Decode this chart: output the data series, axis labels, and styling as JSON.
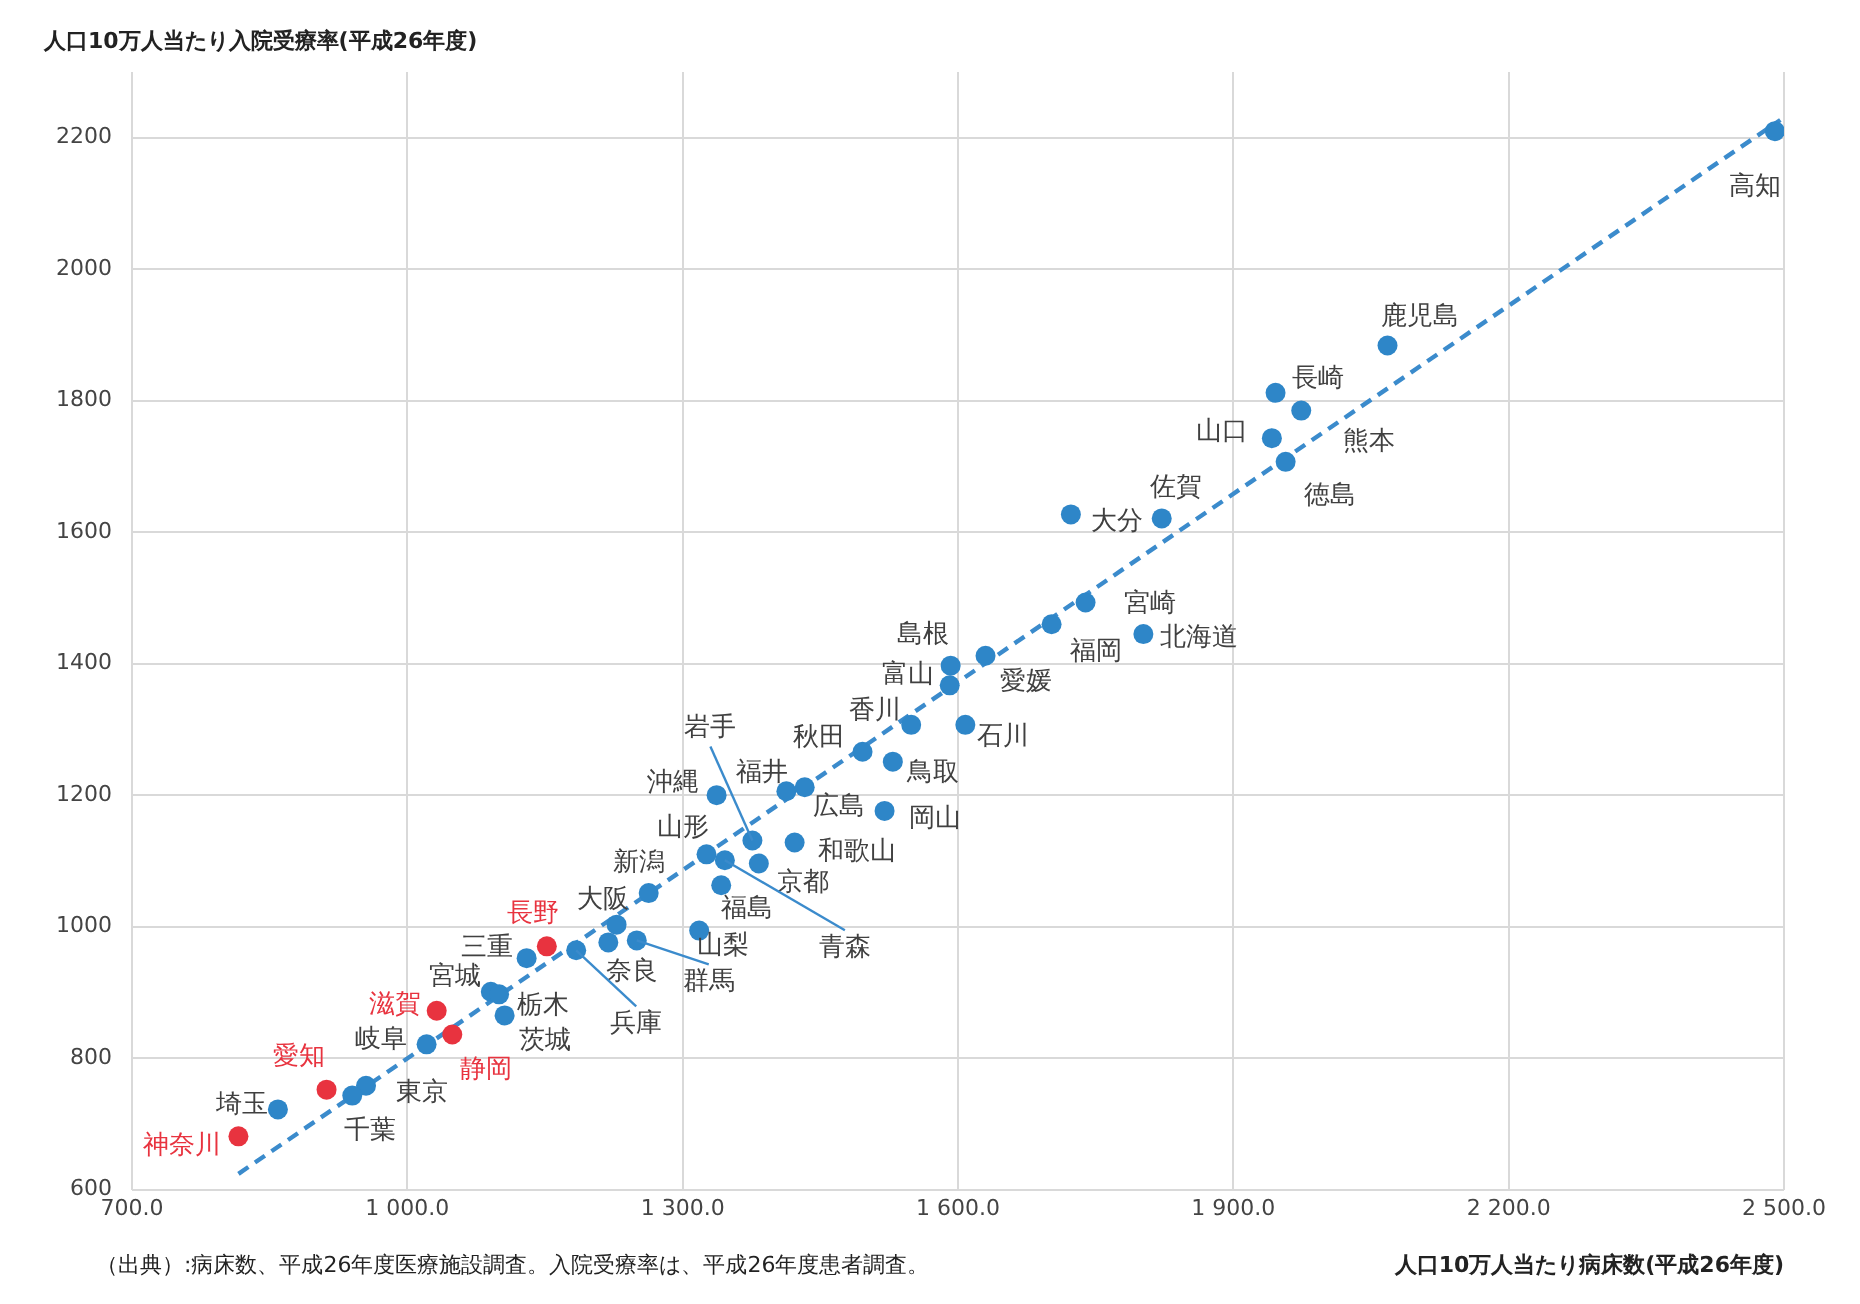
{
  "chart_data": {
    "type": "scatter",
    "xlabel": "人口10万人当たり病床数(平成26年度)",
    "ylabel": "人口10万人当たり入院受療率(平成26年度)",
    "xlim": [
      700,
      2500
    ],
    "ylim": [
      600,
      2300
    ],
    "xticks": [
      {
        "value": 700,
        "label": "700.0"
      },
      {
        "value": 1000,
        "label": "1 000.0"
      },
      {
        "value": 1300,
        "label": "1 300.0"
      },
      {
        "value": 1600,
        "label": "1 600.0"
      },
      {
        "value": 1900,
        "label": "1 900.0"
      },
      {
        "value": 2200,
        "label": "2 200.0"
      },
      {
        "value": 2500,
        "label": "2 500.0"
      }
    ],
    "yticks": [
      600,
      800,
      1000,
      1200,
      1400,
      1600,
      1800,
      2000,
      2200
    ],
    "grid": true,
    "legend": false,
    "marker": "circle",
    "series": [
      {
        "type": "scatter",
        "color": "#2e86c8",
        "x": [
          2490,
          2068,
          1946,
          1974,
          1942,
          1957,
          1822,
          1723,
          1739,
          1702,
          1802,
          1592,
          1630,
          1591,
          1549,
          1608,
          1496,
          1529,
          1376,
          1337,
          1413,
          1433,
          1520,
          1326,
          1422,
          1263,
          1383,
          1342,
          1346,
          1228,
          1318,
          1152,
          1130,
          1219,
          1250,
          1184,
          1091,
          1100,
          1032,
          1106,
          1049,
          1021,
          955,
          912,
          940,
          859,
          816
        ],
        "values": [
          2210,
          1884,
          1812,
          1785,
          1743,
          1707,
          1621,
          1627,
          1493,
          1460,
          1445,
          1397,
          1412,
          1367,
          1307,
          1307,
          1266,
          1251,
          1131,
          1200,
          1206,
          1212,
          1176,
          1110,
          1128,
          1051,
          1096,
          1063,
          1101,
          1003,
          994,
          970,
          952,
          976,
          979,
          964,
          901,
          897,
          872,
          865,
          836,
          821,
          758,
          752,
          743,
          722,
          681
        ],
        "colors": [
          "#2e86c8",
          "#2e86c8",
          "#2e86c8",
          "#2e86c8",
          "#2e86c8",
          "#2e86c8",
          "#2e86c8",
          "#2e86c8",
          "#2e86c8",
          "#2e86c8",
          "#2e86c8",
          "#2e86c8",
          "#2e86c8",
          "#2e86c8",
          "#2e86c8",
          "#2e86c8",
          "#2e86c8",
          "#2e86c8",
          "#2e86c8",
          "#2e86c8",
          "#2e86c8",
          "#2e86c8",
          "#2e86c8",
          "#2e86c8",
          "#2e86c8",
          "#2e86c8",
          "#2e86c8",
          "#2e86c8",
          "#2e86c8",
          "#2e86c8",
          "#2e86c8",
          "#e8333f",
          "#2e86c8",
          "#2e86c8",
          "#2e86c8",
          "#2e86c8",
          "#2e86c8",
          "#2e86c8",
          "#e8333f",
          "#2e86c8",
          "#e8333f",
          "#2e86c8",
          "#2e86c8",
          "#e8333f",
          "#2e86c8",
          "#2e86c8",
          "#e8333f"
        ]
      },
      {
        "type": "line",
        "color": "#3b8bcc",
        "line_style": "dashed",
        "marker": "none",
        "x": [
          816,
          2496
        ],
        "values": [
          624,
          2227
        ]
      }
    ],
    "annotations": [
      {
        "text": "高知",
        "x": 2490,
        "y": 2210
      },
      {
        "text": "鹿児島",
        "x": 2068,
        "y": 1884
      },
      {
        "text": "長崎",
        "x": 1946,
        "y": 1812
      },
      {
        "text": "熊本",
        "x": 1974,
        "y": 1785
      },
      {
        "text": "山口",
        "x": 1942,
        "y": 1743
      },
      {
        "text": "徳島",
        "x": 1957,
        "y": 1707
      },
      {
        "text": "佐賀",
        "x": 1822,
        "y": 1621
      },
      {
        "text": "大分",
        "x": 1723,
        "y": 1627
      },
      {
        "text": "宮崎",
        "x": 1739,
        "y": 1493
      },
      {
        "text": "福岡",
        "x": 1702,
        "y": 1460
      },
      {
        "text": "北海道",
        "x": 1802,
        "y": 1445
      },
      {
        "text": "島根",
        "x": 1592,
        "y": 1397
      },
      {
        "text": "愛媛",
        "x": 1630,
        "y": 1412
      },
      {
        "text": "富山",
        "x": 1591,
        "y": 1367
      },
      {
        "text": "香川",
        "x": 1549,
        "y": 1307
      },
      {
        "text": "石川",
        "x": 1608,
        "y": 1307
      },
      {
        "text": "秋田",
        "x": 1496,
        "y": 1266
      },
      {
        "text": "鳥取",
        "x": 1529,
        "y": 1251
      },
      {
        "text": "岩手",
        "x": 1376,
        "y": 1131
      },
      {
        "text": "沖縄",
        "x": 1337,
        "y": 1200
      },
      {
        "text": "福井",
        "x": 1413,
        "y": 1206
      },
      {
        "text": "広島",
        "x": 1433,
        "y": 1212
      },
      {
        "text": "岡山",
        "x": 1520,
        "y": 1176
      },
      {
        "text": "山形",
        "x": 1326,
        "y": 1110
      },
      {
        "text": "和歌山",
        "x": 1422,
        "y": 1128
      },
      {
        "text": "新潟",
        "x": 1263,
        "y": 1051
      },
      {
        "text": "京都",
        "x": 1383,
        "y": 1096
      },
      {
        "text": "福島",
        "x": 1342,
        "y": 1063
      },
      {
        "text": "青森",
        "x": 1346,
        "y": 1101
      },
      {
        "text": "大阪",
        "x": 1228,
        "y": 1003
      },
      {
        "text": "山梨",
        "x": 1318,
        "y": 994
      },
      {
        "text": "長野",
        "x": 1152,
        "y": 970
      },
      {
        "text": "三重",
        "x": 1130,
        "y": 952
      },
      {
        "text": "奈良",
        "x": 1219,
        "y": 976
      },
      {
        "text": "群馬",
        "x": 1250,
        "y": 979
      },
      {
        "text": "兵庫",
        "x": 1184,
        "y": 964
      },
      {
        "text": "宮城",
        "x": 1091,
        "y": 901
      },
      {
        "text": "栃木",
        "x": 1100,
        "y": 897
      },
      {
        "text": "滋賀",
        "x": 1032,
        "y": 872
      },
      {
        "text": "茨城",
        "x": 1106,
        "y": 865
      },
      {
        "text": "静岡",
        "x": 1049,
        "y": 836
      },
      {
        "text": "岐阜",
        "x": 1021,
        "y": 821
      },
      {
        "text": "東京",
        "x": 955,
        "y": 758
      },
      {
        "text": "愛知",
        "x": 912,
        "y": 752
      },
      {
        "text": "千葉",
        "x": 940,
        "y": 743
      },
      {
        "text": "埼玉",
        "x": 859,
        "y": 722
      },
      {
        "text": "神奈川",
        "x": 816,
        "y": 681
      },
      "（出典）:病床数、平成26年度医療施設調査。入院受療率は、平成26年度患者調査。"
    ]
  }
}
